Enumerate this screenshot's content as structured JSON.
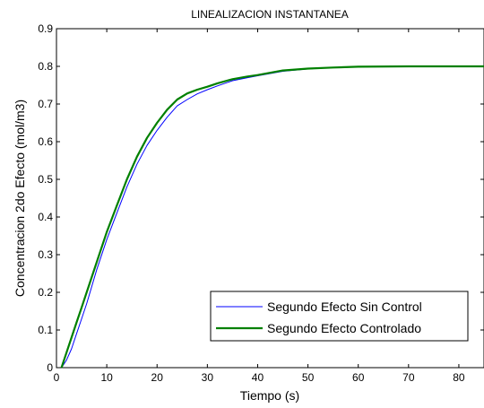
{
  "chart_data": {
    "type": "line",
    "title": "LINEALIZACION INSTANTANEA",
    "xlabel": "Tiempo (s)",
    "ylabel": "Concentracion 2do Efecto (mol/m3)",
    "xlim": [
      0,
      85
    ],
    "ylim": [
      0,
      0.9
    ],
    "xticks": [
      "0",
      "10",
      "20",
      "30",
      "40",
      "50",
      "60",
      "70",
      "80"
    ],
    "yticks": [
      "0",
      "0.1",
      "0.2",
      "0.3",
      "0.4",
      "0.5",
      "0.6",
      "0.7",
      "0.8",
      "0.9"
    ],
    "grid": false,
    "legend_position": "bottom-right",
    "series": [
      {
        "name": "Segundo Efecto Sin Control",
        "color": "#0000ff",
        "line_width": "thin",
        "x": [
          1,
          2,
          3,
          4,
          5,
          6,
          8,
          10,
          12,
          14,
          16,
          18,
          20,
          22,
          24,
          26,
          28,
          30,
          32,
          35,
          38,
          40,
          45,
          50,
          55,
          60,
          70,
          85
        ],
        "y": [
          0,
          0.02,
          0.05,
          0.09,
          0.13,
          0.17,
          0.26,
          0.34,
          0.41,
          0.48,
          0.54,
          0.59,
          0.63,
          0.665,
          0.695,
          0.712,
          0.727,
          0.738,
          0.748,
          0.762,
          0.77,
          0.775,
          0.787,
          0.793,
          0.797,
          0.799,
          0.8,
          0.8
        ]
      },
      {
        "name": "Segundo Efecto Controlado",
        "color": "#008000",
        "line_width": "thick",
        "x": [
          1,
          2,
          3,
          4,
          5,
          6,
          8,
          10,
          12,
          14,
          16,
          18,
          20,
          22,
          24,
          26,
          28,
          30,
          32,
          35,
          38,
          40,
          45,
          50,
          55,
          60,
          70,
          85
        ],
        "y": [
          0,
          0.04,
          0.08,
          0.12,
          0.16,
          0.2,
          0.28,
          0.36,
          0.43,
          0.5,
          0.56,
          0.61,
          0.65,
          0.685,
          0.712,
          0.728,
          0.738,
          0.746,
          0.755,
          0.766,
          0.773,
          0.777,
          0.789,
          0.794,
          0.797,
          0.799,
          0.8,
          0.8
        ]
      }
    ]
  }
}
